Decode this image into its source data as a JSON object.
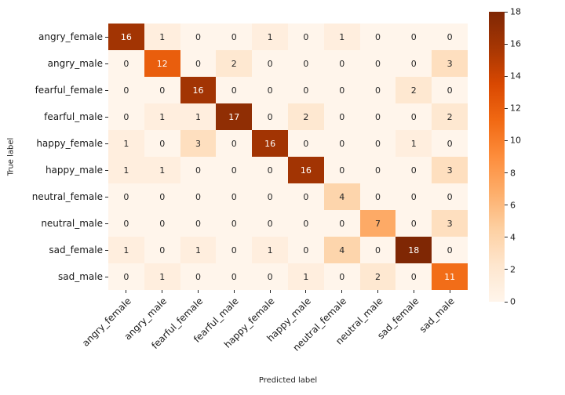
{
  "figure": {
    "background": "#ffffff"
  },
  "colors": {
    "tick_label": "#1a1a1a",
    "tick_mark": "#262626",
    "annotation_dark": "#262626",
    "annotation_light": "#ffffff"
  },
  "chart_data": {
    "type": "heatmap",
    "subtype": "confusion-matrix",
    "title": "",
    "xlabel": "Predicted label",
    "ylabel": "True label",
    "categories": [
      "angry_female",
      "angry_male",
      "fearful_female",
      "fearful_male",
      "happy_female",
      "happy_male",
      "neutral_female",
      "neutral_male",
      "sad_female",
      "sad_male"
    ],
    "matrix": [
      [
        16,
        1,
        0,
        0,
        1,
        0,
        1,
        0,
        0,
        0
      ],
      [
        0,
        12,
        0,
        2,
        0,
        0,
        0,
        0,
        0,
        3
      ],
      [
        0,
        0,
        16,
        0,
        0,
        0,
        0,
        0,
        2,
        0
      ],
      [
        0,
        1,
        1,
        17,
        0,
        2,
        0,
        0,
        0,
        2
      ],
      [
        1,
        0,
        3,
        0,
        16,
        0,
        0,
        0,
        1,
        0
      ],
      [
        1,
        1,
        0,
        0,
        0,
        16,
        0,
        0,
        0,
        3
      ],
      [
        0,
        0,
        0,
        0,
        0,
        0,
        4,
        0,
        0,
        0
      ],
      [
        0,
        0,
        0,
        0,
        0,
        0,
        0,
        7,
        0,
        3
      ],
      [
        1,
        0,
        1,
        0,
        1,
        0,
        4,
        0,
        18,
        0
      ],
      [
        0,
        1,
        0,
        0,
        0,
        1,
        0,
        2,
        0,
        11
      ]
    ],
    "vmin": 0,
    "vmax": 18,
    "colormap": "Oranges",
    "colormap_stops": [
      "#fff5eb",
      "#fee6ce",
      "#fdd0a2",
      "#fdae6b",
      "#fd8d3c",
      "#f16913",
      "#d94801",
      "#a63603",
      "#7f2704"
    ],
    "colorbar_ticks": [
      0,
      2,
      4,
      6,
      8,
      10,
      12,
      14,
      16,
      18
    ],
    "legend_position": "right",
    "grid": false,
    "annotated": true
  }
}
